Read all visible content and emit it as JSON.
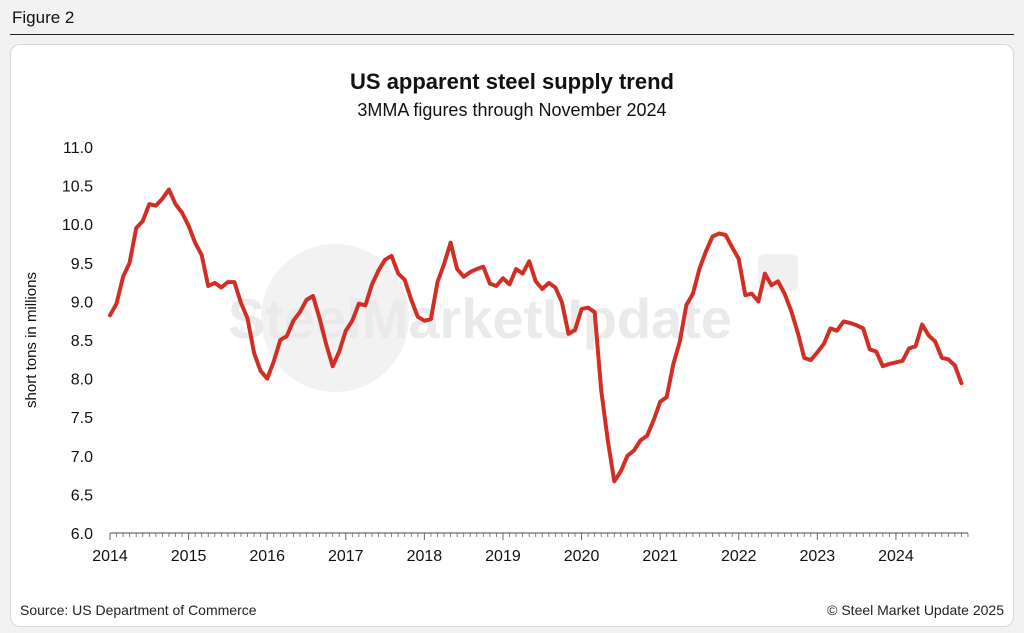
{
  "page": {
    "figure_label": "Figure 2",
    "source": "Source: US Department of Commerce",
    "copyright": "© Steel Market Update 2025",
    "watermark": "SteelMarketUpdate"
  },
  "colors": {
    "line": "#d12f26",
    "watermark": "#e9e9e9"
  },
  "chart_data": {
    "type": "line",
    "title": "US apparent steel supply trend",
    "subtitle": "3MMA figures through November 2024",
    "ylabel": "short tons in millions",
    "xlabel": "",
    "ylim": [
      6.0,
      11.0
    ],
    "yticks": [
      "11.0",
      "10.5",
      "10.0",
      "9.5",
      "9.0",
      "8.5",
      "8.0",
      "7.5",
      "7.0",
      "6.5",
      "6.0"
    ],
    "xlim": [
      2014.0,
      2024.917
    ],
    "xticks": [
      "2014",
      "2015",
      "2016",
      "2017",
      "2018",
      "2019",
      "2020",
      "2021",
      "2022",
      "2023",
      "2024"
    ],
    "grid": false,
    "legend": "none",
    "series": [
      {
        "values": [
          8.82,
          8.97,
          9.32,
          9.5,
          9.95,
          10.04,
          10.26,
          10.24,
          10.33,
          10.45,
          10.26,
          10.15,
          9.98,
          9.76,
          9.6,
          9.2,
          9.24,
          9.18,
          9.25,
          9.25,
          8.98,
          8.78,
          8.33,
          8.1,
          8.0,
          8.22,
          8.5,
          8.55,
          8.75,
          8.86,
          9.02,
          9.07,
          8.78,
          8.45,
          8.16,
          8.35,
          8.62,
          8.75,
          8.97,
          8.95,
          9.22,
          9.4,
          9.54,
          9.59,
          9.36,
          9.28,
          9.02,
          8.8,
          8.75,
          8.77,
          9.25,
          9.48,
          9.76,
          9.42,
          9.32,
          9.38,
          9.42,
          9.45,
          9.23,
          9.2,
          9.3,
          9.22,
          9.42,
          9.36,
          9.52,
          9.26,
          9.16,
          9.24,
          9.18,
          8.99,
          8.58,
          8.63,
          8.9,
          8.92,
          8.86,
          7.85,
          7.2,
          6.67,
          6.8,
          7.0,
          7.07,
          7.2,
          7.26,
          7.46,
          7.7,
          7.76,
          8.18,
          8.48,
          8.95,
          9.1,
          9.42,
          9.65,
          9.84,
          9.88,
          9.86,
          9.7,
          9.55,
          9.08,
          9.1,
          9.0,
          9.36,
          9.21,
          9.26,
          9.1,
          8.88,
          8.6,
          8.27,
          8.24,
          8.34,
          8.45,
          8.65,
          8.62,
          8.74,
          8.72,
          8.69,
          8.65,
          8.38,
          8.35,
          8.16,
          8.19,
          8.21,
          8.23,
          8.39,
          8.42,
          8.7,
          8.56,
          8.48,
          8.27,
          8.25,
          8.17,
          7.94
        ]
      }
    ]
  }
}
